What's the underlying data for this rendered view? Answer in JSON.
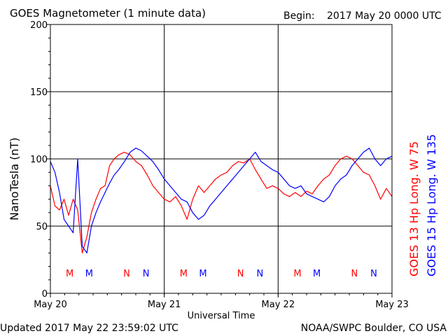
{
  "header": {
    "title": "GOES Magnetometer (1 minute data)",
    "begin_label": "Begin:",
    "begin_value": "2017 May 20 0000 UTC"
  },
  "footer": {
    "updated": "Updated 2017 May 22 23:59:02 UTC",
    "credit": "NOAA/SWPC Boulder, CO USA"
  },
  "colors": {
    "goes13": "#ff0000",
    "goes15": "#0000ff",
    "axes": "#000000",
    "grid": "#000000"
  },
  "chart_data": {
    "type": "line",
    "ylabel": "NanoTesla (nT)",
    "xlabel": "Universal Time",
    "ylim": [
      0,
      200
    ],
    "yticks": [
      "0",
      "50",
      "100",
      "150",
      "200"
    ],
    "xlim_days": [
      0,
      3
    ],
    "xticks": [
      "May 20",
      "May 21",
      "May 22",
      "May 23"
    ],
    "grid": true,
    "legend_position": "right-vertical",
    "series": [
      {
        "name": "GOES 13 Hp  Long. W 75",
        "color": "#ff0000",
        "x_days": [
          0,
          0.04,
          0.08,
          0.12,
          0.16,
          0.2,
          0.24,
          0.28,
          0.32,
          0.36,
          0.4,
          0.44,
          0.48,
          0.52,
          0.56,
          0.6,
          0.65,
          0.7,
          0.75,
          0.8,
          0.85,
          0.9,
          0.95,
          1.0,
          1.05,
          1.1,
          1.15,
          1.2,
          1.25,
          1.3,
          1.35,
          1.4,
          1.45,
          1.5,
          1.55,
          1.6,
          1.65,
          1.7,
          1.75,
          1.8,
          1.85,
          1.9,
          1.95,
          2.0,
          2.05,
          2.1,
          2.15,
          2.2,
          2.25,
          2.3,
          2.35,
          2.4,
          2.45,
          2.5,
          2.55,
          2.6,
          2.65,
          2.7,
          2.75,
          2.8,
          2.85,
          2.9,
          2.95,
          3.0
        ],
        "values": [
          80,
          65,
          62,
          70,
          58,
          70,
          62,
          30,
          42,
          60,
          70,
          78,
          80,
          95,
          100,
          103,
          105,
          103,
          98,
          95,
          88,
          80,
          75,
          70,
          68,
          72,
          65,
          55,
          70,
          80,
          75,
          80,
          85,
          88,
          90,
          95,
          98,
          97,
          100,
          92,
          85,
          78,
          80,
          78,
          74,
          72,
          75,
          72,
          76,
          74,
          80,
          85,
          88,
          95,
          100,
          102,
          100,
          95,
          90,
          88,
          80,
          70,
          78,
          72
        ]
      },
      {
        "name": "GOES 15 Hp  Long. W 135",
        "color": "#0000ff",
        "x_days": [
          0,
          0.04,
          0.08,
          0.12,
          0.16,
          0.2,
          0.24,
          0.28,
          0.32,
          0.36,
          0.4,
          0.44,
          0.48,
          0.52,
          0.56,
          0.6,
          0.65,
          0.7,
          0.75,
          0.8,
          0.85,
          0.9,
          0.95,
          1.0,
          1.05,
          1.1,
          1.15,
          1.2,
          1.25,
          1.3,
          1.35,
          1.4,
          1.45,
          1.5,
          1.55,
          1.6,
          1.65,
          1.7,
          1.75,
          1.8,
          1.85,
          1.9,
          1.95,
          2.0,
          2.05,
          2.1,
          2.15,
          2.2,
          2.25,
          2.3,
          2.35,
          2.4,
          2.45,
          2.5,
          2.55,
          2.6,
          2.65,
          2.7,
          2.75,
          2.8,
          2.85,
          2.9,
          2.95,
          3.0
        ],
        "values": [
          98,
          90,
          75,
          55,
          50,
          45,
          100,
          35,
          30,
          50,
          60,
          68,
          75,
          82,
          88,
          92,
          98,
          105,
          108,
          106,
          102,
          98,
          92,
          85,
          80,
          75,
          70,
          68,
          60,
          55,
          58,
          65,
          70,
          75,
          80,
          85,
          90,
          95,
          100,
          105,
          98,
          95,
          92,
          90,
          85,
          80,
          78,
          80,
          74,
          72,
          70,
          68,
          72,
          80,
          85,
          88,
          95,
          100,
          105,
          108,
          100,
          95,
          100,
          102
        ]
      }
    ],
    "event_markers": [
      {
        "label": "M",
        "day": 0.17,
        "color": "#ff0000"
      },
      {
        "label": "M",
        "day": 0.34,
        "color": "#0000ff"
      },
      {
        "label": "N",
        "day": 0.67,
        "color": "#ff0000"
      },
      {
        "label": "N",
        "day": 0.84,
        "color": "#0000ff"
      },
      {
        "label": "M",
        "day": 1.17,
        "color": "#ff0000"
      },
      {
        "label": "M",
        "day": 1.34,
        "color": "#0000ff"
      },
      {
        "label": "N",
        "day": 1.67,
        "color": "#ff0000"
      },
      {
        "label": "N",
        "day": 1.84,
        "color": "#0000ff"
      },
      {
        "label": "M",
        "day": 2.17,
        "color": "#ff0000"
      },
      {
        "label": "M",
        "day": 2.34,
        "color": "#0000ff"
      },
      {
        "label": "N",
        "day": 2.67,
        "color": "#ff0000"
      },
      {
        "label": "N",
        "day": 2.84,
        "color": "#0000ff"
      }
    ]
  }
}
